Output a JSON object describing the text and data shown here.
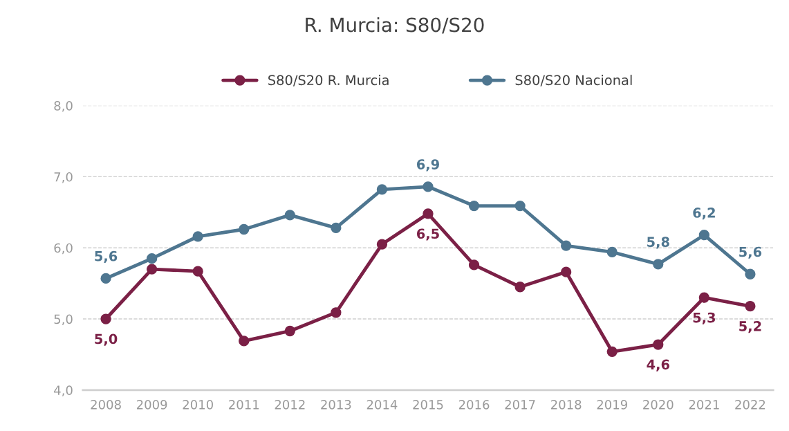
{
  "chart_data": {
    "type": "line",
    "title": "R. Murcia: S80/S20",
    "categories": [
      "2008",
      "2009",
      "2010",
      "2011",
      "2012",
      "2013",
      "2014",
      "2015",
      "2016",
      "2017",
      "2018",
      "2019",
      "2020",
      "2021",
      "2022"
    ],
    "series": [
      {
        "name": "S80/S20 R. Murcia",
        "color": "#7b2046",
        "values": [
          5.0,
          5.7,
          5.67,
          4.69,
          4.83,
          5.09,
          6.05,
          6.48,
          5.76,
          5.45,
          5.66,
          4.54,
          4.64,
          5.3,
          5.18
        ],
        "value_labels": [
          "5,0",
          null,
          null,
          null,
          null,
          null,
          null,
          "6,5",
          null,
          null,
          null,
          null,
          "4,6",
          "5,3",
          "5,2"
        ]
      },
      {
        "name": "S80/S20 Nacional",
        "color": "#4e7690",
        "values": [
          5.57,
          5.85,
          6.16,
          6.26,
          6.46,
          6.28,
          6.82,
          6.86,
          6.59,
          6.59,
          6.03,
          5.94,
          5.77,
          6.18,
          5.63
        ],
        "value_labels": [
          "5,6",
          null,
          null,
          null,
          null,
          null,
          null,
          "6,9",
          null,
          null,
          null,
          null,
          "5,8",
          "6,2",
          "5,6"
        ]
      }
    ],
    "ylim": [
      4,
      8
    ],
    "yticks": [
      {
        "value": 4,
        "label": "4,0"
      },
      {
        "value": 5,
        "label": "5,0"
      },
      {
        "value": 6,
        "label": "6,0"
      },
      {
        "value": 7,
        "label": "7,0"
      },
      {
        "value": 8,
        "label": "8,0"
      }
    ],
    "grid": "y",
    "legend": "top",
    "marker": "circle",
    "line_style": "solid"
  }
}
